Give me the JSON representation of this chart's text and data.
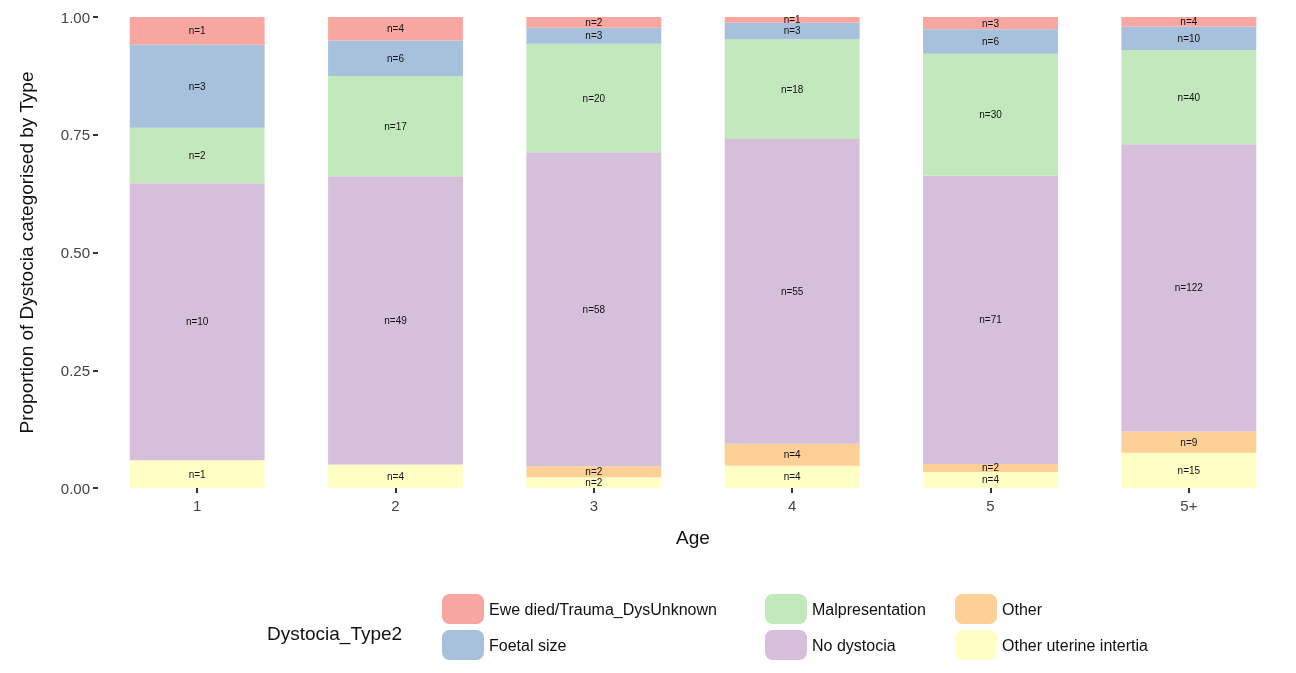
{
  "chart_data": {
    "type": "bar",
    "stacked": true,
    "xlabel": "Age",
    "ylabel": "Proportion of Dystocia categorised by Type",
    "legend_title": "Dystocia_Type2",
    "legend": "bottom",
    "categories": [
      "1",
      "2",
      "3",
      "4",
      "5",
      "5+"
    ],
    "ylim": [
      0,
      1
    ],
    "yticks": [
      {
        "value": 0,
        "label": "0.00"
      },
      {
        "value": 0.25,
        "label": "0.25"
      },
      {
        "value": 0.5,
        "label": "0.50"
      },
      {
        "value": 0.75,
        "label": "0.75"
      },
      {
        "value": 1,
        "label": "1.00"
      }
    ],
    "series": [
      {
        "name": "Other uterine intertia",
        "color": "#ffffc5",
        "values": [
          0.059,
          0.05,
          0.023,
          0.047,
          0.034,
          0.075
        ]
      },
      {
        "name": "Other",
        "color": "#fdd097",
        "values": [
          0,
          0,
          0.023,
          0.047,
          0.017,
          0.045
        ]
      },
      {
        "name": "No dystocia",
        "color": "#d6bfdb",
        "values": [
          0.588,
          0.612,
          0.667,
          0.647,
          0.612,
          0.61
        ]
      },
      {
        "name": "Malpresentation",
        "color": "#c3e8bd",
        "values": [
          0.118,
          0.213,
          0.23,
          0.212,
          0.259,
          0.2
        ]
      },
      {
        "name": "Foetal size",
        "color": "#a7c0dc",
        "values": [
          0.176,
          0.075,
          0.034,
          0.035,
          0.052,
          0.05
        ]
      },
      {
        "name": "Ewe died/Trauma_DysUnknown",
        "color": "#f8a7a0",
        "values": [
          0.059,
          0.05,
          0.023,
          0.012,
          0.026,
          0.02
        ]
      }
    ],
    "annotations": [
      "n=1",
      "n=10",
      "n=2",
      "n=3",
      "n=1",
      "n=4",
      "n=49",
      "n=17",
      "n=6",
      "n=4",
      "n=2",
      "n=2",
      "n=58",
      "n=20",
      "n=3",
      "n=2",
      "n=4",
      "n=4",
      "n=55",
      "n=18",
      "n=3",
      "n=1",
      "n=4",
      "n=2",
      "n=71",
      "n=30",
      "n=6",
      "n=3",
      "n=15",
      "n=9",
      "n=122",
      "n=40",
      "n=10",
      "n=4"
    ]
  }
}
